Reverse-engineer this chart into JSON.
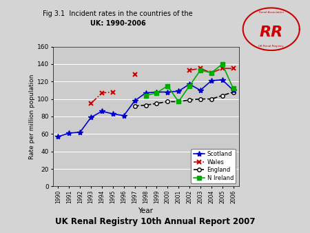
{
  "years": [
    1990,
    1991,
    1992,
    1993,
    1994,
    1995,
    1996,
    1997,
    1998,
    1999,
    2000,
    2001,
    2002,
    2003,
    2004,
    2005,
    2006
  ],
  "scotland": [
    57,
    61,
    62,
    79,
    86,
    83,
    81,
    98,
    107,
    108,
    108,
    109,
    117,
    110,
    121,
    122,
    110
  ],
  "wales": [
    null,
    null,
    null,
    95,
    107,
    108,
    null,
    128,
    null,
    null,
    null,
    null,
    133,
    135,
    130,
    135,
    135
  ],
  "england": [
    null,
    null,
    null,
    null,
    null,
    null,
    null,
    92,
    93,
    95,
    97,
    97,
    99,
    100,
    100,
    104,
    108
  ],
  "n_ireland": [
    null,
    null,
    null,
    null,
    null,
    null,
    null,
    null,
    104,
    107,
    115,
    97,
    115,
    133,
    130,
    140,
    112
  ],
  "title_line1": "Fig 3.1  Incident rates in the countries of the",
  "title_line2": "UK: 1990-2006",
  "xlabel": "Year",
  "ylabel": "Rate per million population",
  "ylim": [
    0,
    160
  ],
  "yticks": [
    0,
    20,
    40,
    60,
    80,
    100,
    120,
    140,
    160
  ],
  "footer": "UK Renal Registry 10th Annual Report 2007",
  "scotland_color": "#0000cc",
  "wales_color": "#cc0000",
  "england_color": "#000000",
  "n_ireland_color": "#00aa00",
  "fig_bg": "#d4d4d4"
}
